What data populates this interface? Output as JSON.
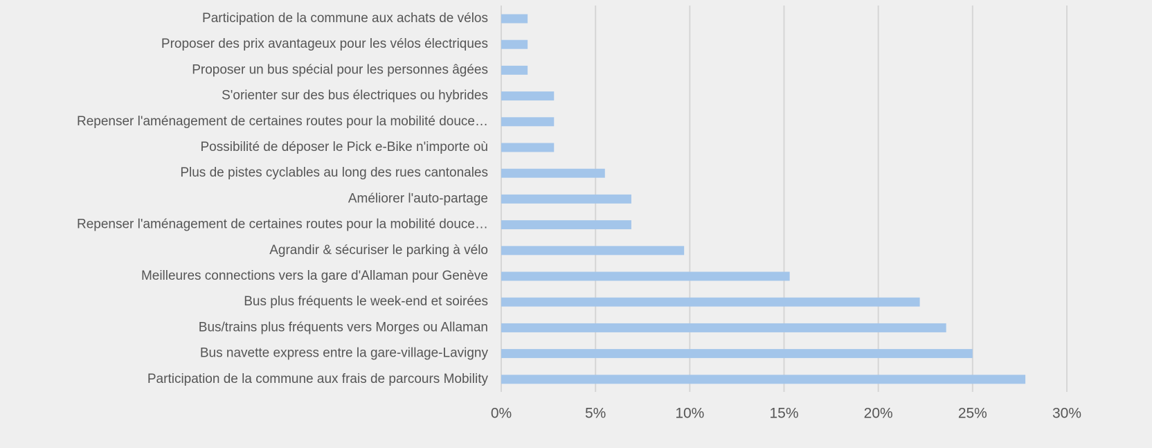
{
  "chart_data": {
    "type": "bar",
    "orientation": "horizontal",
    "categories": [
      "Participation de la commune aux achats de vélos",
      "Proposer des prix avantageux pour les vélos électriques",
      "Proposer un bus spécial pour les personnes âgées",
      "S'orienter sur des bus électriques ou hybrides",
      "Repenser l'aménagement de certaines routes pour la mobilité douce…",
      "Possibilité de déposer le Pick e-Bike n'importe où",
      "Plus de pistes cyclables au long des rues cantonales",
      "Améliorer l'auto-partage",
      "Repenser l'aménagement de certaines routes pour la mobilité douce…",
      "Agrandir & sécuriser le parking à vélo",
      "Meilleures connections vers la gare d'Allaman pour Genève",
      "Bus plus fréquents le week-end et soirées",
      "Bus/trains plus fréquents vers Morges ou Allaman",
      "Bus navette express entre la gare-village-Lavigny",
      "Participation de la commune aux frais de parcours Mobility"
    ],
    "values": [
      1.4,
      1.4,
      1.4,
      2.8,
      2.8,
      2.8,
      5.5,
      6.9,
      6.9,
      9.7,
      15.3,
      22.2,
      23.6,
      25.0,
      27.8
    ],
    "color": "#a3c5ea",
    "xlim": [
      0,
      30
    ],
    "xticks": [
      {
        "value": 0,
        "label": "0%"
      },
      {
        "value": 5,
        "label": "5%"
      },
      {
        "value": 10,
        "label": "10%"
      },
      {
        "value": 15,
        "label": "15%"
      },
      {
        "value": 20,
        "label": "20%"
      },
      {
        "value": 25,
        "label": "25%"
      },
      {
        "value": 30,
        "label": "30%"
      }
    ],
    "grid": true
  }
}
